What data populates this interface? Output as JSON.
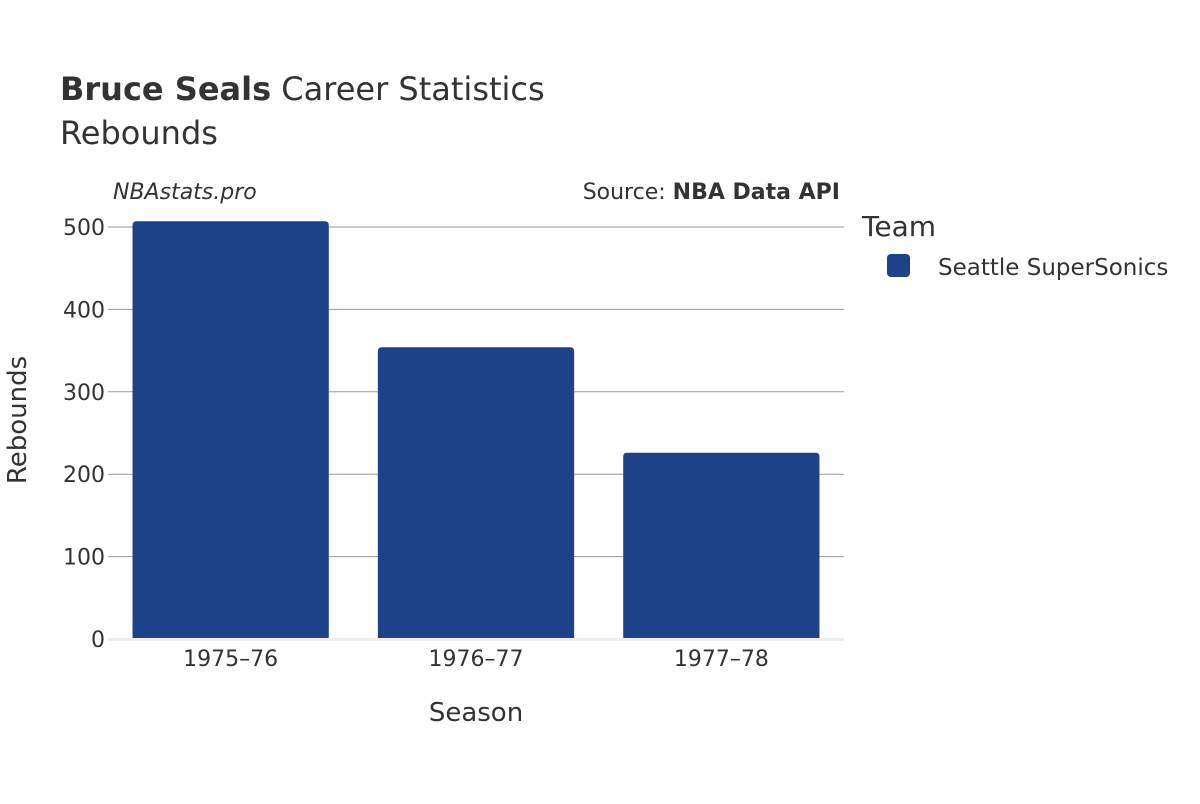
{
  "title": {
    "player": "Bruce Seals",
    "rest": " Career Statistics",
    "subtitle": "Rebounds"
  },
  "watermark": "NBAstats.pro",
  "source": {
    "prefix": "Source: ",
    "name": "NBA Data API"
  },
  "legend": {
    "title": "Team"
  },
  "colors": {
    "bar": "#1d428a",
    "grid": "#999999",
    "baseline": "#eeeeee",
    "text": "#333333"
  },
  "chart_data": {
    "type": "bar",
    "title": "Bruce Seals Career Statistics",
    "subtitle": "Rebounds",
    "xlabel": "Season",
    "ylabel": "Rebounds",
    "categories": [
      "1975–76",
      "1976–77",
      "1977–78"
    ],
    "series": [
      {
        "name": "Seattle SuperSonics",
        "values": [
          507,
          354,
          226
        ]
      }
    ],
    "ylim": [
      0,
      500
    ],
    "yticks": [
      0,
      100,
      200,
      300,
      400,
      500
    ],
    "grid": true,
    "legend_position": "right"
  }
}
